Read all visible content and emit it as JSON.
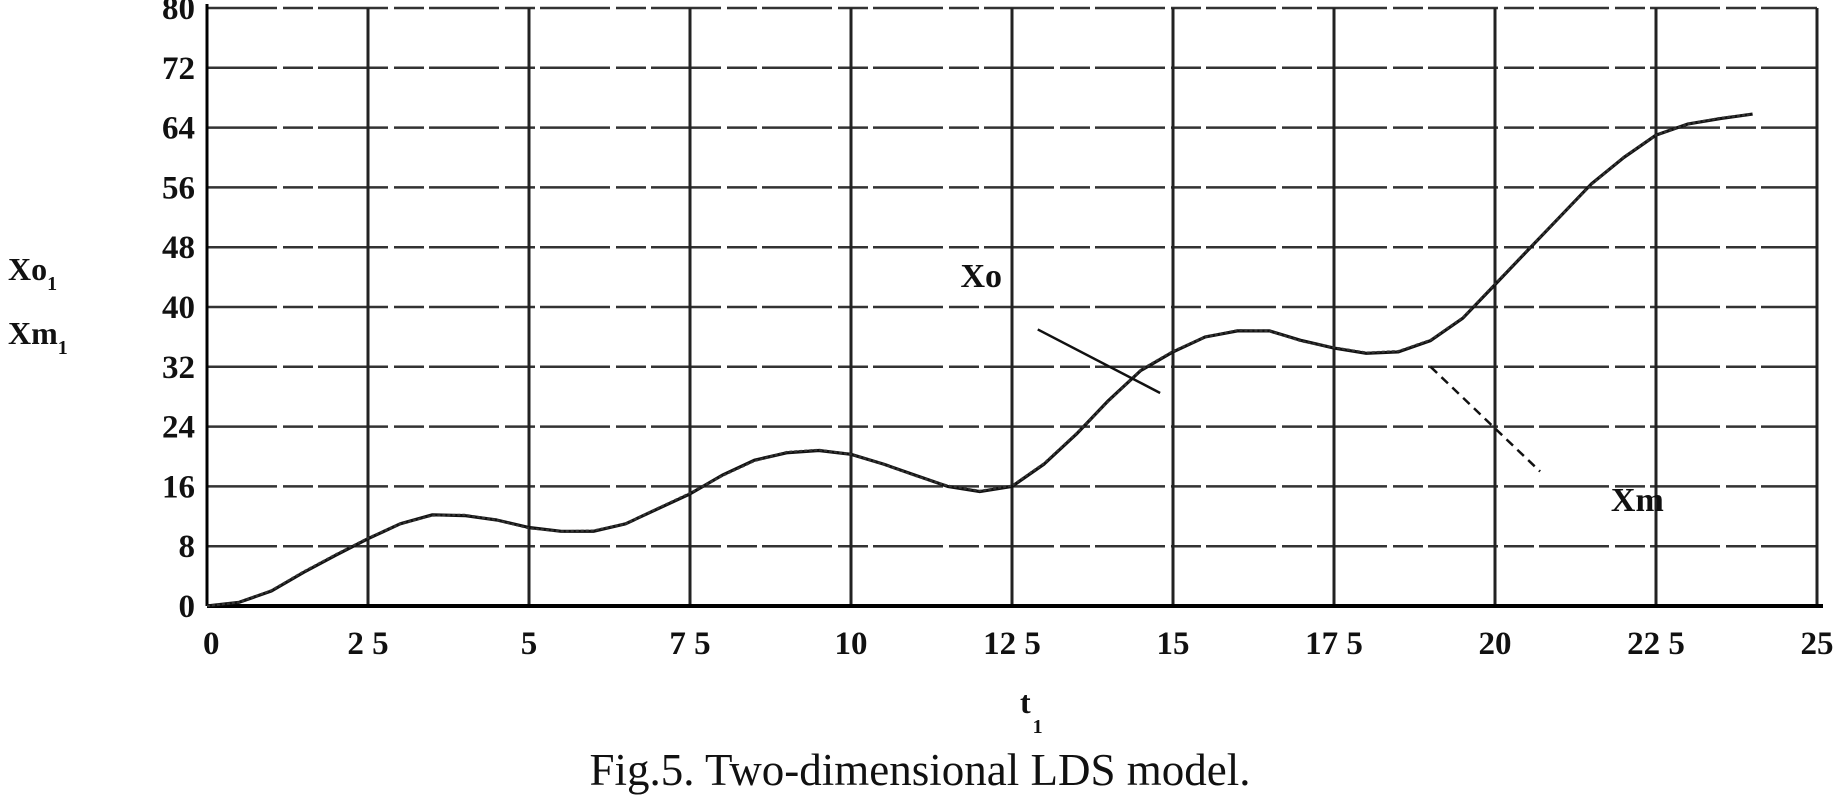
{
  "caption": "Fig.5. Two-dimensional LDS model.",
  "chart_data": {
    "type": "line",
    "title": "",
    "xlabel": "t",
    "xlabel_sub": "1",
    "ylabel_lines": [
      {
        "text": "Xo",
        "sub": "1"
      },
      {
        "text": "Xm",
        "sub": "1"
      }
    ],
    "xlim": [
      0,
      25
    ],
    "ylim": [
      0,
      80
    ],
    "x_ticks": [
      0,
      2.5,
      5,
      7.5,
      10,
      12.5,
      15,
      17.5,
      20,
      22.5,
      25
    ],
    "x_tick_labels": [
      "0",
      "2 5",
      "5",
      "7 5",
      "10",
      "12 5",
      "15",
      "17 5",
      "20",
      "22 5",
      "25"
    ],
    "y_ticks": [
      0,
      8,
      16,
      24,
      32,
      40,
      48,
      56,
      64,
      72,
      80
    ],
    "y_tick_labels": [
      "0",
      "8",
      "16",
      "24",
      "32",
      "40",
      "48",
      "56",
      "64",
      "72",
      "80"
    ],
    "grid": true,
    "series": [
      {
        "name": "Xo",
        "x": [
          0,
          0.5,
          1,
          1.5,
          2,
          2.5,
          3,
          3.5,
          4,
          4.5,
          5,
          5.5,
          6,
          6.5,
          7,
          7.5,
          8,
          8.5,
          9,
          9.5,
          10,
          10.5,
          11,
          11.5,
          12,
          12.5,
          13,
          13.5,
          14,
          14.5,
          15,
          15.5,
          16,
          16.5,
          17,
          17.5,
          18,
          18.5,
          19,
          19.5,
          20,
          20.5,
          21,
          21.5,
          22,
          22.5,
          23,
          23.5,
          24
        ],
        "y": [
          0,
          0.5,
          2,
          4.5,
          6.8,
          9,
          11,
          12.2,
          12.1,
          11.5,
          10.5,
          10,
          10,
          11,
          13,
          15,
          17.5,
          19.5,
          20.5,
          20.8,
          20.3,
          19,
          17.5,
          16,
          15.3,
          16,
          19,
          23,
          27.5,
          31.5,
          34,
          36,
          36.8,
          36.8,
          35.5,
          34.5,
          33.8,
          34,
          35.5,
          38.5,
          43,
          47.5,
          52,
          56.5,
          60,
          63,
          64.5,
          65.2,
          65.8
        ]
      },
      {
        "name": "Xm",
        "x": [
          0,
          0.5,
          1,
          1.5,
          2,
          2.5,
          3,
          3.5,
          4,
          4.5,
          5,
          5.5,
          6,
          6.5,
          7,
          7.5,
          8,
          8.5,
          9,
          9.5,
          10,
          10.5,
          11,
          11.5,
          12,
          12.5,
          13,
          13.5,
          14,
          14.5,
          15,
          15.5,
          16,
          16.5,
          17,
          17.5,
          18,
          18.5,
          19,
          19.5,
          20,
          20.5,
          21,
          21.5,
          22,
          22.5,
          23,
          23.5,
          24
        ],
        "y": [
          0,
          0.5,
          2.1,
          4.6,
          6.9,
          9.1,
          11,
          12.1,
          12.2,
          11.5,
          10.4,
          10,
          10.1,
          11,
          13.1,
          15.1,
          17.4,
          19.4,
          20.6,
          20.9,
          20.3,
          19,
          17.4,
          16.1,
          15.4,
          16.1,
          19.1,
          23.1,
          27.4,
          31.6,
          34.1,
          36,
          36.9,
          36.8,
          35.4,
          34.6,
          33.9,
          34.1,
          35.6,
          38.6,
          43.1,
          47.6,
          52,
          56.4,
          60.1,
          63,
          64.5,
          65.3,
          65.8
        ]
      }
    ],
    "annotations": [
      {
        "text": "Xo",
        "x": 11.7,
        "y": 42.7,
        "line_from": [
          12.9,
          37
        ],
        "line_to": [
          14.8,
          28.5
        ],
        "dashed": false
      },
      {
        "text": "Xm",
        "x": 21.8,
        "y": 12.7,
        "line_from": [
          19.0,
          32
        ],
        "line_to": [
          20.7,
          18
        ],
        "dashed": true
      }
    ]
  }
}
